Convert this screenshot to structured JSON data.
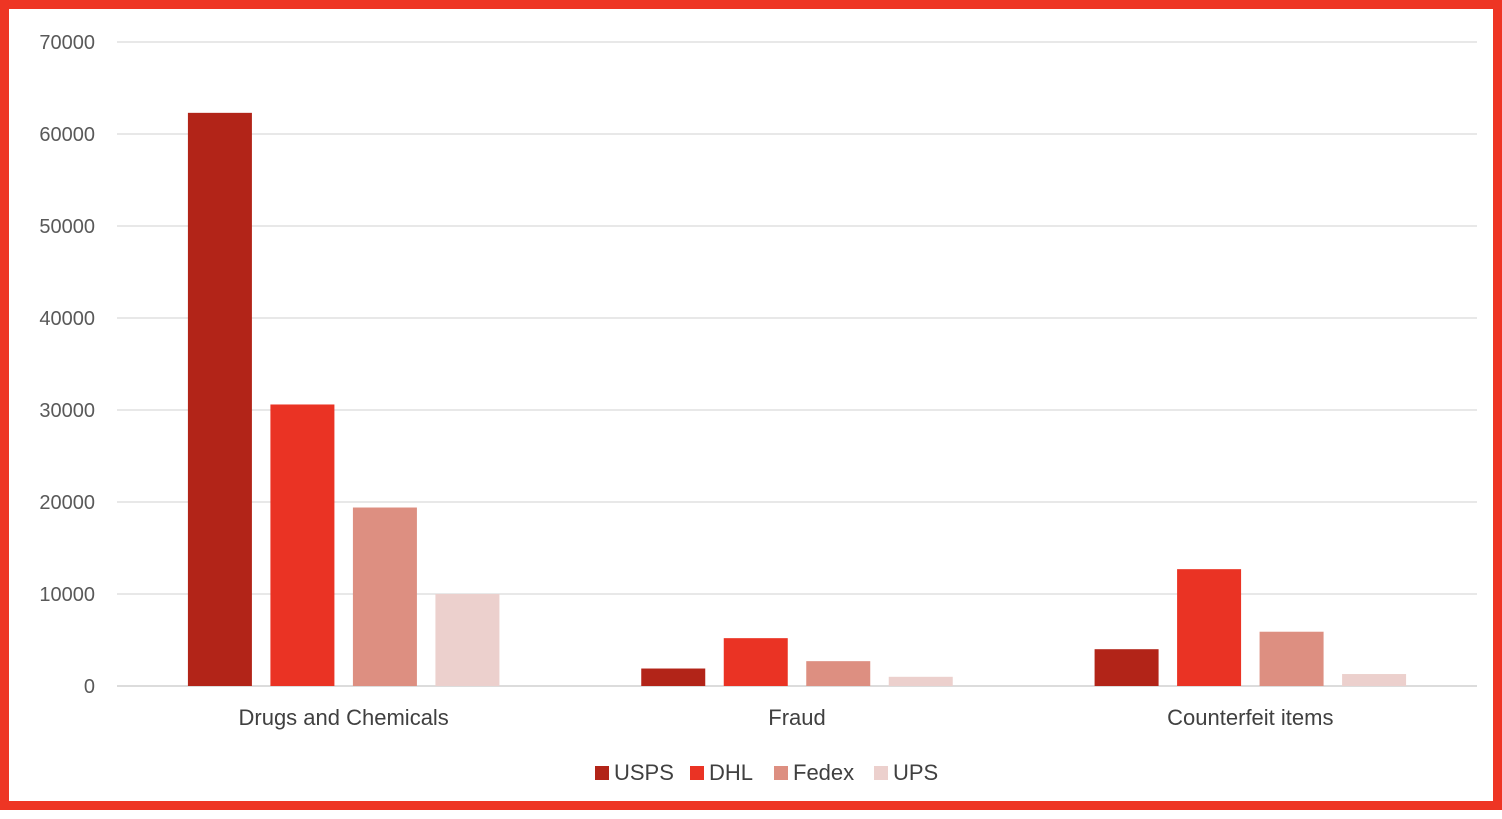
{
  "chart_data": {
    "type": "bar",
    "title": "",
    "xlabel": "",
    "ylabel": "",
    "categories": [
      "Drugs and Chemicals",
      "Fraud",
      "Counterfeit items"
    ],
    "series": [
      {
        "name": "USPS",
        "color": "#b22418",
        "values": [
          62300,
          1900,
          4000
        ]
      },
      {
        "name": "DHL",
        "color": "#ea3324",
        "values": [
          30600,
          5200,
          12700
        ]
      },
      {
        "name": "Fedex",
        "color": "#dd8f81",
        "values": [
          19400,
          2700,
          5900
        ]
      },
      {
        "name": "UPS",
        "color": "#ecd0cd",
        "values": [
          10000,
          1000,
          1300
        ]
      }
    ],
    "ylim": [
      0,
      70000
    ],
    "yticks": [
      0,
      10000,
      20000,
      30000,
      40000,
      50000,
      60000,
      70000
    ],
    "grid": true,
    "legend_position": "bottom"
  }
}
